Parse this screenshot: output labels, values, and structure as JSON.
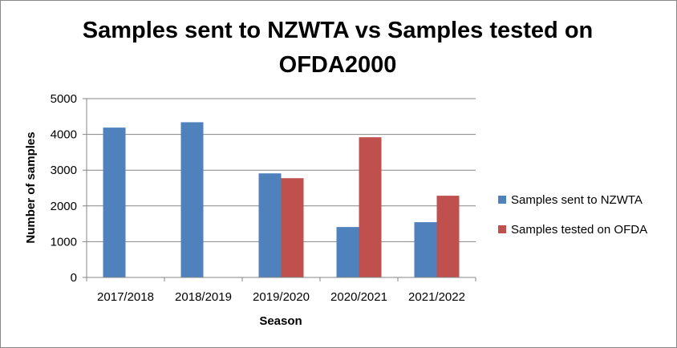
{
  "chart_data": {
    "type": "bar",
    "title": "Samples sent to NZWTA vs Samples tested on OFDA2000",
    "xlabel": "Season",
    "ylabel": "Number of samples",
    "ylim": [
      0,
      5000
    ],
    "yticks": [
      0,
      1000,
      2000,
      3000,
      4000,
      5000
    ],
    "grid": true,
    "legend_position": "right",
    "categories": [
      "2017/2018",
      "2018/2019",
      "2019/2020",
      "2020/2021",
      "2021/2022"
    ],
    "series": [
      {
        "name": "Samples sent to NZWTA",
        "color": "#4F81BD",
        "values": [
          4190,
          4340,
          2910,
          1410,
          1545
        ]
      },
      {
        "name": "Samples tested on OFDA",
        "color": "#C0504D",
        "values": [
          null,
          null,
          2775,
          3920,
          2285
        ]
      }
    ]
  }
}
